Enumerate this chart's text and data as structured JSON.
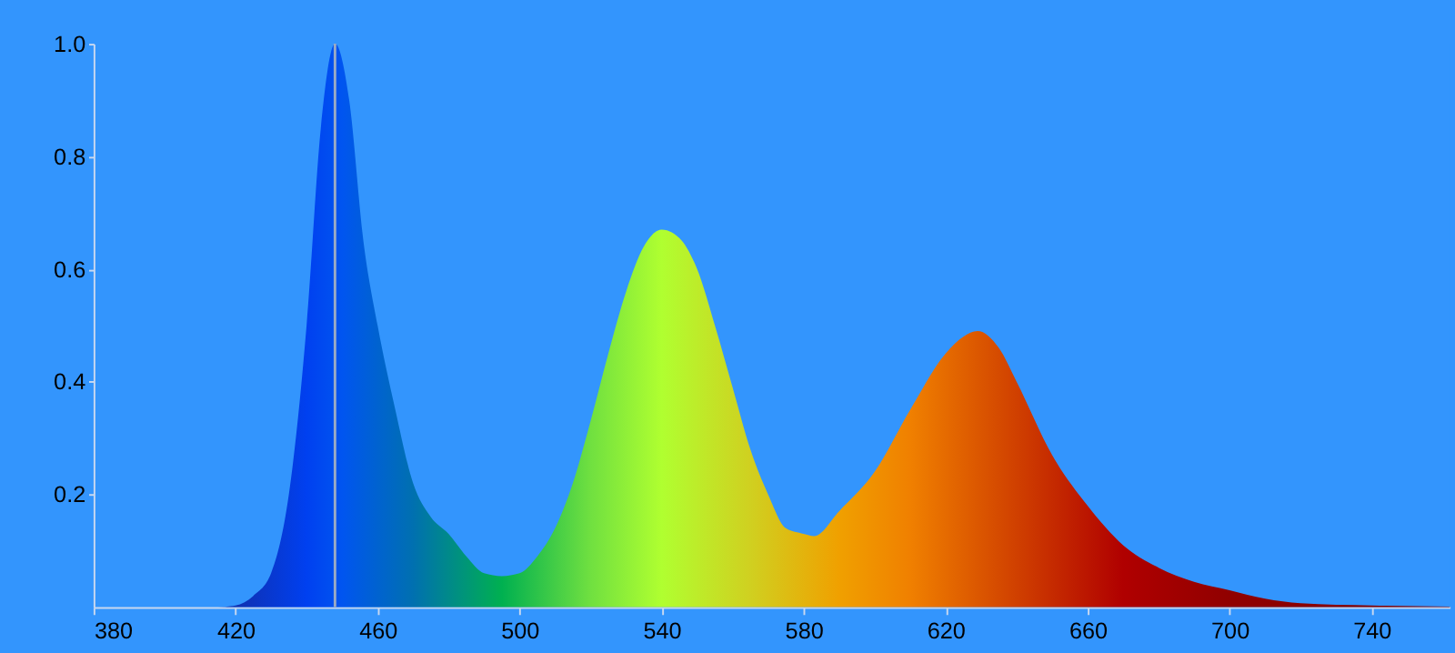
{
  "chart_data": {
    "type": "area",
    "x": [
      415,
      420,
      425,
      430,
      435,
      440,
      444,
      448,
      452,
      456,
      460,
      465,
      470,
      475,
      480,
      485,
      490,
      495,
      500,
      505,
      510,
      515,
      520,
      525,
      530,
      535,
      540,
      545,
      550,
      555,
      560,
      565,
      570,
      575,
      580,
      583,
      590,
      600,
      610,
      620,
      625,
      629,
      635,
      640,
      650,
      660,
      670,
      680,
      690,
      700,
      710,
      720,
      740,
      762
    ],
    "values": [
      0,
      0.003,
      0.02,
      0.06,
      0.2,
      0.5,
      0.85,
      1.0,
      0.9,
      0.65,
      0.5,
      0.35,
      0.22,
      0.16,
      0.13,
      0.09,
      0.06,
      0.055,
      0.06,
      0.09,
      0.14,
      0.22,
      0.33,
      0.45,
      0.56,
      0.64,
      0.67,
      0.655,
      0.6,
      0.5,
      0.39,
      0.28,
      0.2,
      0.14,
      0.13,
      0.126,
      0.17,
      0.24,
      0.35,
      0.45,
      0.48,
      0.49,
      0.46,
      0.4,
      0.27,
      0.18,
      0.11,
      0.07,
      0.045,
      0.03,
      0.015,
      0.007,
      0.003,
      0.001
    ],
    "xlim": [
      380,
      762
    ],
    "xticks": [
      380,
      420,
      460,
      500,
      540,
      580,
      620,
      660,
      700,
      740
    ],
    "ylim": [
      0,
      1.0
    ],
    "yticks": [
      0.2,
      0.4,
      0.6,
      0.8,
      {
        "value": 1.0,
        "label": "1.0"
      }
    ],
    "ref_lines": [
      {
        "axis": "x",
        "value": 448,
        "color": "#9aaac4"
      }
    ],
    "grid": false
  }
}
